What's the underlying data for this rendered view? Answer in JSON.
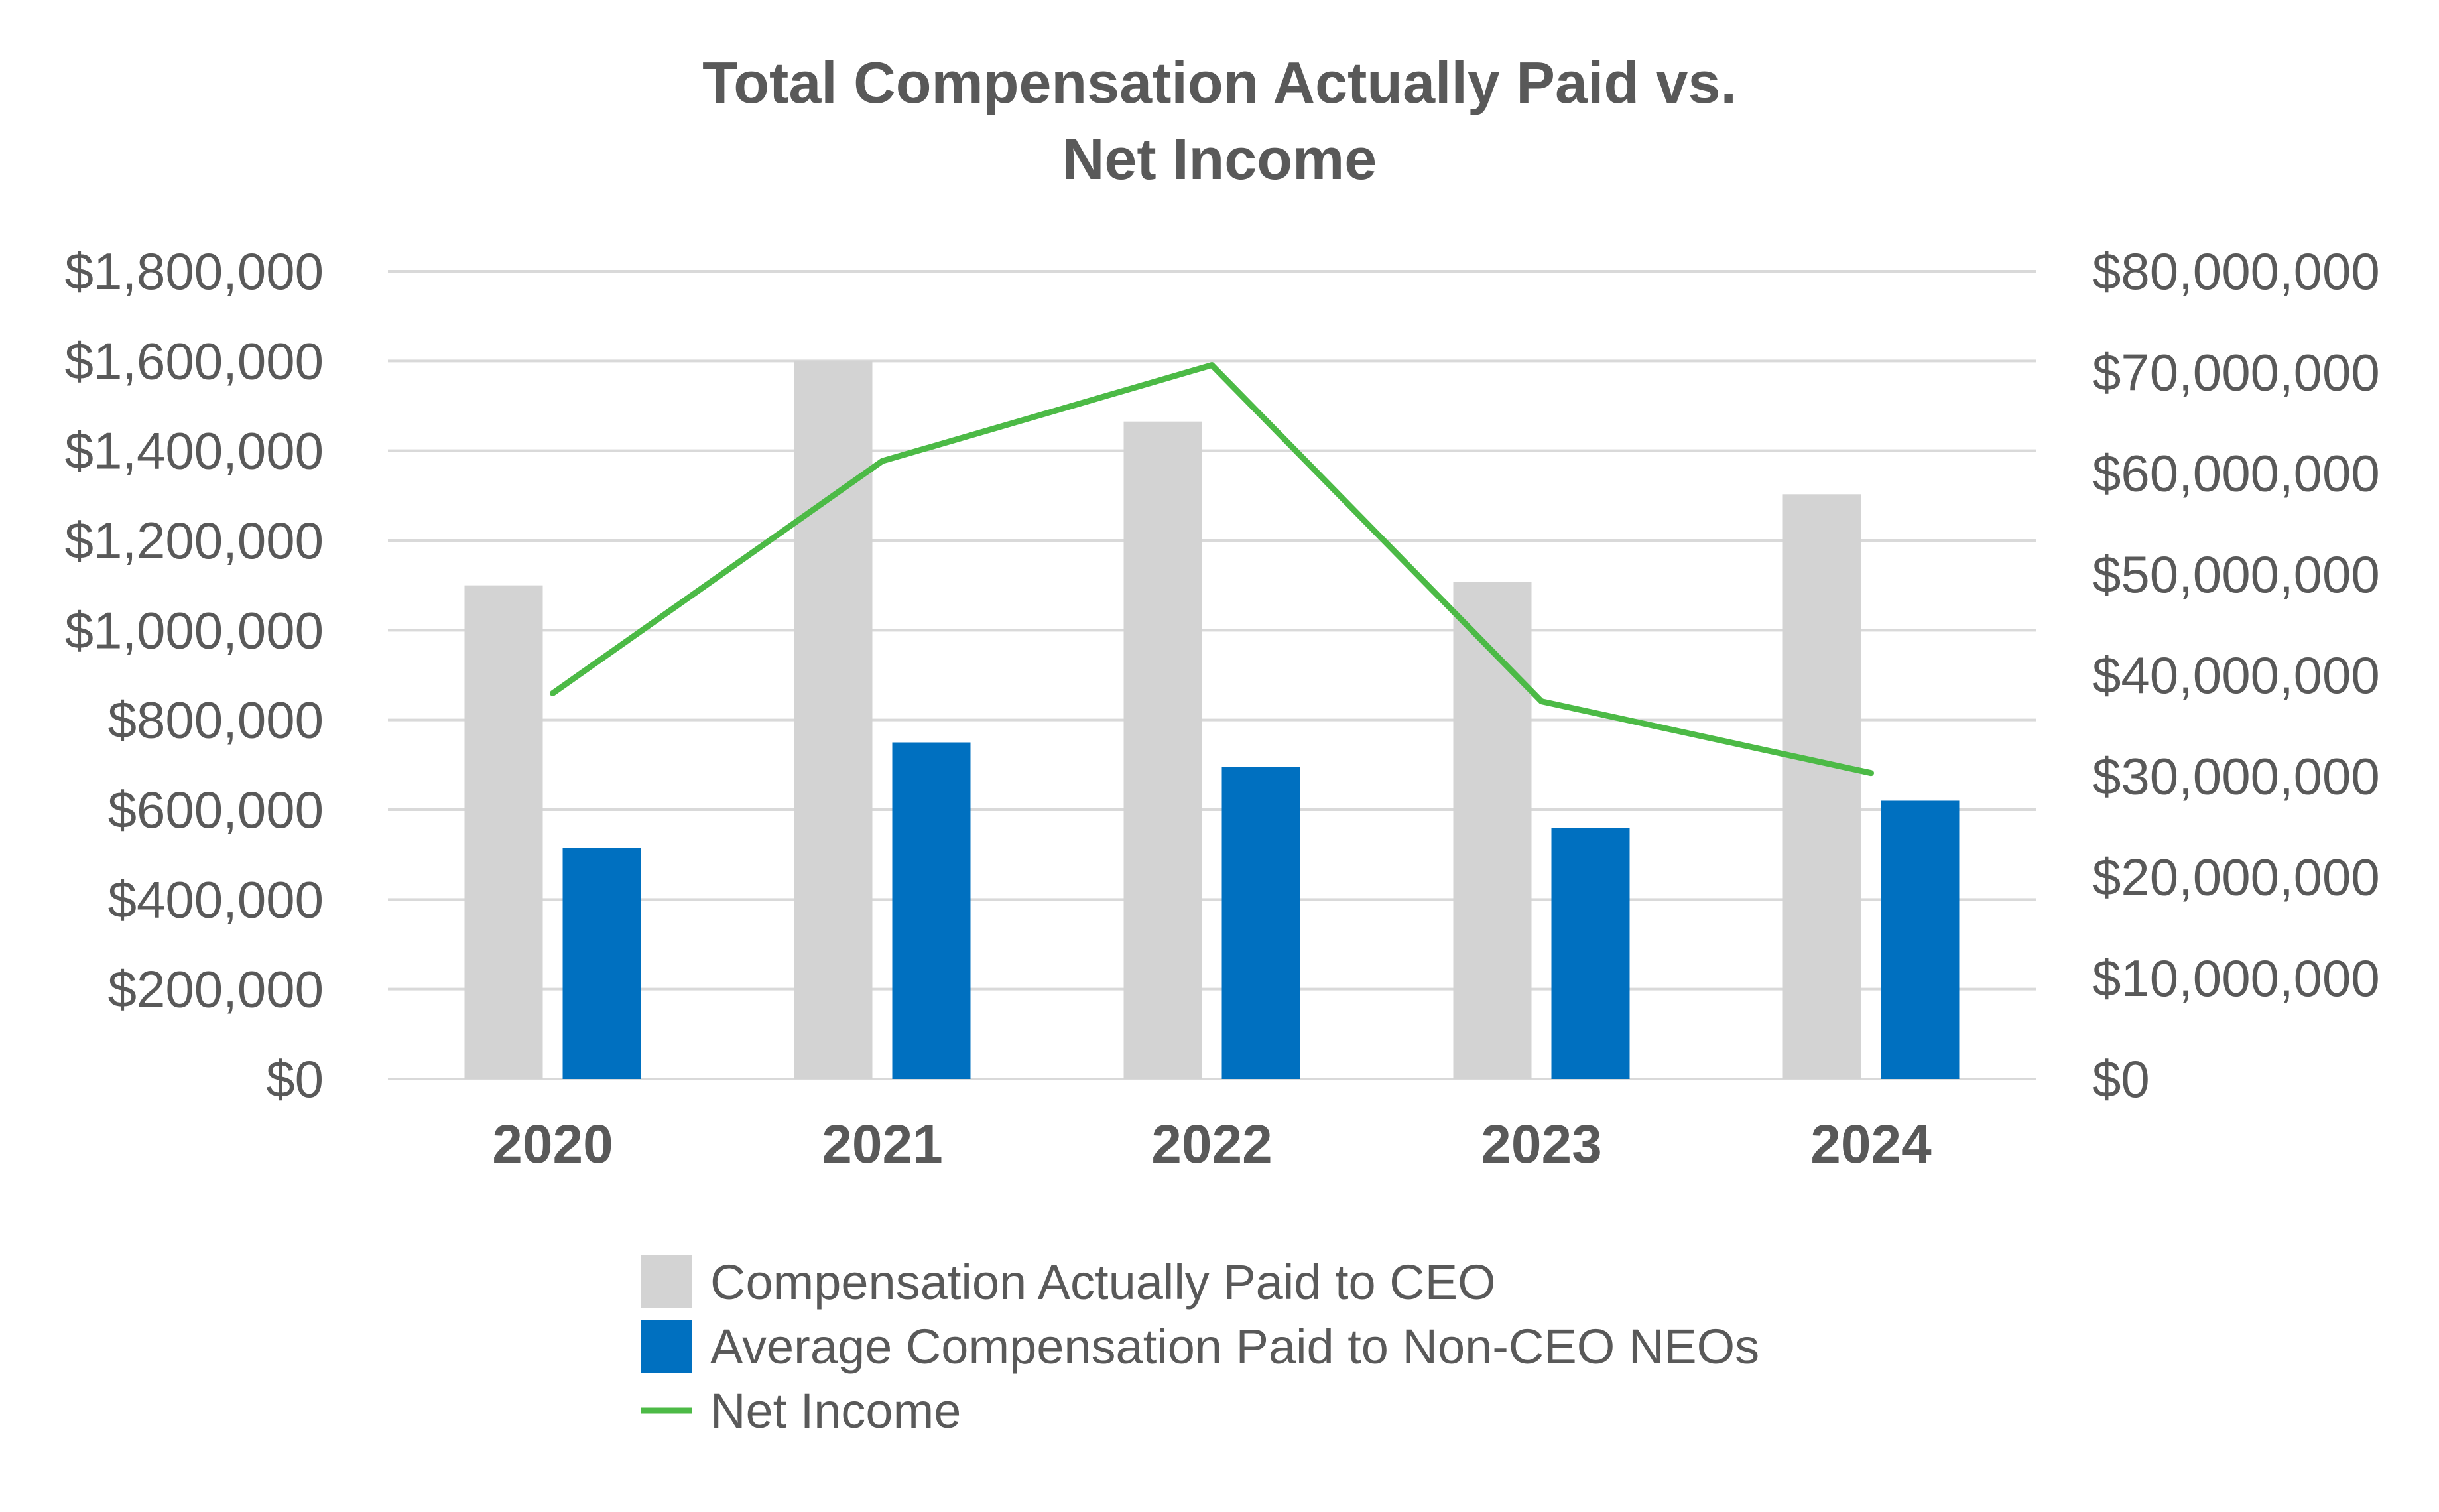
{
  "chart_data": {
    "type": "bar",
    "title_lines": [
      "Total Compensation Actually Paid vs.",
      "Net Income"
    ],
    "categories": [
      "2020",
      "2021",
      "2022",
      "2023",
      "2024"
    ],
    "y_left": {
      "min": 0,
      "max": 1800000,
      "step": 200000,
      "tick_labels": [
        "$0",
        "$200,000",
        "$400,000",
        "$600,000",
        "$800,000",
        "$1,000,000",
        "$1,200,000",
        "$1,400,000",
        "$1,600,000",
        "$1,800,000"
      ]
    },
    "y_right": {
      "min": 0,
      "max": 80000000,
      "step": 10000000,
      "tick_labels": [
        "$0",
        "$10,000,000",
        "$20,000,000",
        "$30,000,000",
        "$40,000,000",
        "$50,000,000",
        "$60,000,000",
        "$70,000,000",
        "$80,000,000"
      ]
    },
    "grid": true,
    "legend_position": "bottom",
    "series": [
      {
        "name": "Compensation Actually Paid to CEO",
        "kind": "bar",
        "axis": "left",
        "color": "#d3d3d3",
        "values": [
          1100000,
          1600000,
          1465000,
          1108000,
          1303000
        ]
      },
      {
        "name": "Average Compensation Paid to Non-CEO NEOs",
        "kind": "bar",
        "axis": "left",
        "color": "#0070c0",
        "values": [
          515000,
          750000,
          695000,
          560000,
          620000
        ]
      },
      {
        "name": "Net Income",
        "kind": "line",
        "axis": "right",
        "color": "#4cba46",
        "values": [
          38200000,
          61200000,
          70700000,
          37400000,
          30300000
        ]
      }
    ]
  }
}
